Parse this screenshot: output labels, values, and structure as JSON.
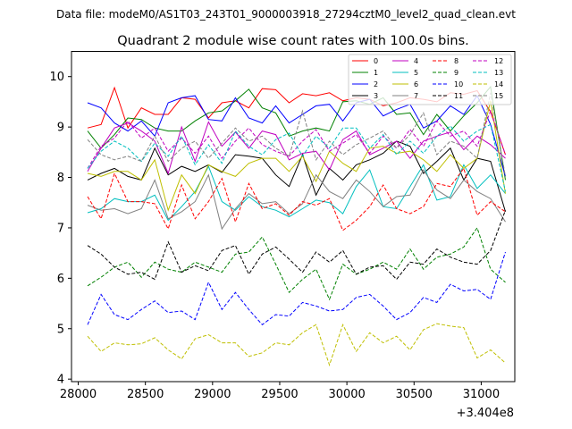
{
  "header": {
    "data_file": "Data file: modeM0/AS1T03_243T01_9000003918_27294cztM0_level2_quad_clean.evt"
  },
  "chart_data": {
    "type": "line",
    "title": "Quadrant 2 module wise count rates with 100.0s bins.",
    "xlabel": "",
    "ylabel": "",
    "x_offset_label": "+3.404e8",
    "xlim": [
      27950,
      31250
    ],
    "ylim": [
      3.95,
      10.5
    ],
    "xticks": [
      28000,
      28500,
      29000,
      29500,
      30000,
      30500,
      31000
    ],
    "xtick_labels": [
      "28000",
      "28500",
      "29000",
      "29500",
      "30000",
      "30500",
      "31000"
    ],
    "yticks": [
      4,
      5,
      6,
      7,
      8,
      9,
      10
    ],
    "ytick_labels": [
      "4",
      "5",
      "6",
      "7",
      "8",
      "9",
      "10"
    ],
    "legend_position": "top-right",
    "x": [
      28070,
      28170,
      28270,
      28370,
      28470,
      28570,
      28670,
      28770,
      28870,
      28970,
      29070,
      29170,
      29270,
      29370,
      29470,
      29570,
      29670,
      29770,
      29870,
      29970,
      30070,
      30170,
      30270,
      30370,
      30470,
      30570,
      30670,
      30770,
      30870,
      30970,
      31070,
      31180
    ],
    "series": [
      {
        "name": "0",
        "color": "#ff0000",
        "dash": "solid",
        "values": [
          8.98,
          9.05,
          9.78,
          8.98,
          9.38,
          9.25,
          9.25,
          9.58,
          9.55,
          9.18,
          9.48,
          9.52,
          9.38,
          9.76,
          9.74,
          9.48,
          9.66,
          9.62,
          9.68,
          9.52,
          9.58,
          9.55,
          9.42,
          9.48,
          9.58,
          9.55,
          9.5,
          9.68,
          9.65,
          9.72,
          9.3,
          8.45
        ]
      },
      {
        "name": "1",
        "color": "#008000",
        "dash": "solid",
        "values": [
          8.92,
          8.58,
          8.85,
          9.18,
          9.15,
          8.98,
          8.92,
          8.92,
          9.12,
          9.28,
          9.32,
          9.52,
          9.75,
          9.38,
          9.28,
          8.82,
          8.92,
          8.98,
          8.92,
          9.5,
          9.52,
          9.45,
          9.58,
          9.25,
          9.28,
          8.85,
          9.25,
          8.92,
          9.22,
          9.48,
          9.8,
          7.95
        ]
      },
      {
        "name": "2",
        "color": "#0000ff",
        "dash": "solid",
        "values": [
          9.48,
          9.38,
          9.08,
          8.92,
          9.12,
          8.82,
          9.48,
          9.58,
          9.62,
          9.15,
          9.12,
          9.58,
          9.18,
          9.08,
          9.42,
          9.08,
          9.25,
          9.42,
          9.45,
          9.12,
          9.48,
          9.55,
          9.22,
          9.35,
          9.45,
          8.98,
          9.12,
          9.42,
          9.25,
          9.62,
          9.05,
          8.02
        ]
      },
      {
        "name": "3",
        "color": "#000000",
        "dash": "solid",
        "values": [
          7.95,
          8.08,
          8.18,
          8.02,
          7.95,
          8.58,
          8.05,
          8.22,
          8.12,
          8.25,
          8.1,
          8.45,
          8.42,
          8.38,
          8.05,
          7.82,
          8.45,
          7.65,
          8.18,
          7.95,
          8.25,
          8.35,
          8.48,
          8.72,
          8.62,
          8.08,
          8.32,
          8.58,
          7.95,
          8.38,
          8.32,
          7.32
        ]
      },
      {
        "name": "4",
        "color": "#c000c0",
        "dash": "solid",
        "values": [
          8.12,
          8.58,
          8.98,
          9.08,
          8.92,
          8.72,
          8.08,
          9.0,
          8.32,
          9.1,
          8.62,
          8.9,
          8.58,
          8.92,
          8.85,
          8.35,
          8.48,
          8.52,
          8.15,
          8.75,
          8.92,
          8.45,
          8.58,
          8.72,
          8.38,
          8.72,
          8.82,
          8.9,
          8.55,
          8.82,
          8.65,
          8.38
        ]
      },
      {
        "name": "5",
        "color": "#00bfbf",
        "dash": "solid",
        "values": [
          7.3,
          7.38,
          7.58,
          7.52,
          7.52,
          7.65,
          7.15,
          7.42,
          7.72,
          8.22,
          7.52,
          7.35,
          7.62,
          7.42,
          7.35,
          7.22,
          7.38,
          7.55,
          7.5,
          7.28,
          7.82,
          8.15,
          7.42,
          7.38,
          7.82,
          8.25,
          7.55,
          7.62,
          8.25,
          7.78,
          8.05,
          7.68
        ]
      },
      {
        "name": "6",
        "color": "#bfbf00",
        "dash": "solid",
        "values": [
          8.08,
          8.02,
          8.12,
          8.12,
          7.95,
          8.35,
          7.35,
          8.05,
          7.68,
          8.25,
          8.12,
          8.02,
          8.28,
          8.38,
          8.38,
          8.12,
          8.42,
          7.92,
          8.52,
          8.28,
          8.12,
          8.58,
          8.62,
          8.48,
          8.52,
          8.35,
          8.12,
          8.45,
          8.18,
          8.38,
          9.52,
          7.68
        ]
      },
      {
        "name": "7",
        "color": "#808080",
        "dash": "solid",
        "values": [
          7.45,
          7.35,
          7.38,
          7.28,
          7.38,
          7.95,
          7.18,
          7.32,
          7.52,
          8.05,
          6.98,
          7.38,
          7.68,
          7.48,
          7.52,
          7.28,
          7.48,
          8.05,
          7.72,
          7.58,
          7.95,
          7.72,
          7.42,
          7.62,
          7.65,
          8.15,
          7.75,
          7.58,
          7.95,
          7.72,
          7.58,
          7.12
        ]
      },
      {
        "name": "8",
        "color": "#ff0000",
        "dash": "dashed",
        "values": [
          7.62,
          7.18,
          8.08,
          7.52,
          7.52,
          7.48,
          6.98,
          7.85,
          7.18,
          7.52,
          7.98,
          7.12,
          7.88,
          7.38,
          7.48,
          7.25,
          7.52,
          7.45,
          7.58,
          6.95,
          7.15,
          7.42,
          7.85,
          7.38,
          7.28,
          7.42,
          7.88,
          7.82,
          8.18,
          7.25,
          7.52,
          7.32
        ]
      },
      {
        "name": "9",
        "color": "#008000",
        "dash": "dashed",
        "values": [
          5.85,
          6.02,
          6.22,
          6.32,
          6.02,
          6.32,
          6.18,
          6.12,
          6.32,
          6.22,
          6.12,
          6.48,
          6.52,
          6.82,
          6.28,
          5.72,
          5.98,
          6.18,
          5.58,
          6.28,
          6.08,
          6.18,
          6.32,
          6.18,
          6.58,
          6.18,
          6.42,
          6.48,
          6.62,
          7.0,
          6.18,
          5.92
        ]
      },
      {
        "name": "10",
        "color": "#0000ff",
        "dash": "dashed",
        "values": [
          5.08,
          5.68,
          5.28,
          5.18,
          5.38,
          5.55,
          5.32,
          5.35,
          5.18,
          5.92,
          5.38,
          5.72,
          5.38,
          5.08,
          5.28,
          5.25,
          5.52,
          5.45,
          5.35,
          5.38,
          5.62,
          5.68,
          5.45,
          5.18,
          5.32,
          5.62,
          5.52,
          5.88,
          5.75,
          5.78,
          5.58,
          6.52
        ]
      },
      {
        "name": "11",
        "color": "#000000",
        "dash": "dashed",
        "values": [
          6.65,
          6.48,
          6.22,
          6.08,
          6.12,
          5.98,
          6.72,
          6.12,
          6.25,
          6.15,
          6.55,
          6.65,
          6.08,
          6.48,
          6.62,
          6.38,
          6.12,
          6.52,
          6.32,
          6.55,
          6.08,
          6.22,
          6.25,
          5.98,
          6.32,
          6.28,
          6.58,
          6.42,
          6.32,
          6.28,
          6.55,
          7.35
        ]
      },
      {
        "name": "12",
        "color": "#c000c0",
        "dash": "dashed",
        "values": [
          8.18,
          8.62,
          8.78,
          9.12,
          8.78,
          8.98,
          8.52,
          8.78,
          8.48,
          8.82,
          8.38,
          8.72,
          8.98,
          8.65,
          8.52,
          8.42,
          8.72,
          8.95,
          8.52,
          8.68,
          8.85,
          8.48,
          8.82,
          8.58,
          8.95,
          8.62,
          9.12,
          8.82,
          8.92,
          8.62,
          9.32,
          8.45
        ]
      },
      {
        "name": "13",
        "color": "#00bfbf",
        "dash": "dashed",
        "values": [
          8.18,
          8.52,
          8.72,
          8.58,
          8.32,
          8.68,
          8.42,
          8.82,
          8.25,
          8.65,
          8.28,
          8.92,
          8.62,
          8.45,
          8.75,
          8.88,
          8.42,
          8.82,
          8.58,
          8.98,
          8.98,
          8.58,
          8.85,
          8.45,
          8.72,
          8.48,
          8.82,
          9.02,
          8.72,
          8.92,
          9.05,
          7.72
        ]
      },
      {
        "name": "14",
        "color": "#bfbf00",
        "dash": "dashed",
        "values": [
          4.85,
          4.55,
          4.72,
          4.68,
          4.7,
          4.82,
          4.58,
          4.4,
          4.8,
          4.88,
          4.72,
          4.72,
          4.45,
          4.52,
          4.72,
          4.68,
          4.92,
          5.08,
          4.28,
          5.08,
          4.55,
          4.92,
          4.72,
          4.85,
          4.58,
          4.98,
          5.1,
          5.05,
          5.02,
          4.42,
          4.58,
          4.32
        ]
      },
      {
        "name": "15",
        "color": "#808080",
        "dash": "dashed",
        "values": [
          8.75,
          8.45,
          8.35,
          8.42,
          8.32,
          8.82,
          8.32,
          8.58,
          8.72,
          8.38,
          8.68,
          8.98,
          8.72,
          8.82,
          8.58,
          8.42,
          9.32,
          8.35,
          8.72,
          8.45,
          8.65,
          8.78,
          8.92,
          8.58,
          8.85,
          9.28,
          8.45,
          8.72,
          8.62,
          8.38,
          9.68,
          8.02
        ]
      }
    ]
  }
}
